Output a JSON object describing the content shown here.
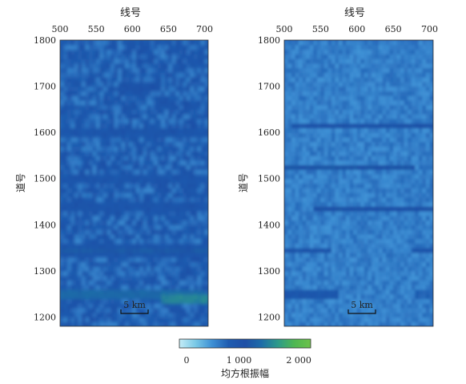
{
  "chart_data": [
    {
      "type": "heatmap",
      "xlabel": "线号",
      "ylabel": "道号",
      "xlim": [
        500,
        705
      ],
      "ylim": [
        1180,
        1800
      ],
      "xticks": [
        500,
        550,
        600,
        650,
        700
      ],
      "yticks": [
        1200,
        1300,
        1400,
        1500,
        1600,
        1700,
        1800
      ],
      "scale_bar": "5 km",
      "bright_zones": [
        {
          "y": 1250,
          "x_from": 500,
          "x_to": 700,
          "value": 1600
        },
        {
          "y": 1240,
          "x_from": 640,
          "x_to": 705,
          "value": 1900
        },
        {
          "y": 1345,
          "x_from": 500,
          "x_to": 705,
          "value": 1200
        },
        {
          "y": 1440,
          "x_from": 500,
          "x_to": 705,
          "value": 1000
        },
        {
          "y": 1500,
          "x_from": 500,
          "x_to": 705,
          "value": 950
        },
        {
          "y": 1600,
          "x_from": 500,
          "x_to": 705,
          "value": 950
        },
        {
          "y": 1700,
          "x_from": 580,
          "x_to": 640,
          "value": 1100
        }
      ]
    },
    {
      "type": "heatmap",
      "xlabel": "线号",
      "ylabel": "道号",
      "xlim": [
        500,
        705
      ],
      "ylim": [
        1180,
        1800
      ],
      "xticks": [
        500,
        550,
        600,
        650,
        700
      ],
      "yticks": [
        1200,
        1300,
        1400,
        1500,
        1600,
        1700,
        1800
      ],
      "scale_bar": "5 km",
      "bright_zones": [
        {
          "y": 1250,
          "x_from": 500,
          "x_to": 575,
          "value": 1300
        },
        {
          "y": 1250,
          "x_from": 680,
          "x_to": 705,
          "value": 1000
        },
        {
          "y": 1345,
          "x_from": 500,
          "x_to": 565,
          "value": 1000
        },
        {
          "y": 1345,
          "x_from": 675,
          "x_to": 705,
          "value": 1000
        },
        {
          "y": 1435,
          "x_from": 540,
          "x_to": 705,
          "value": 1100
        },
        {
          "y": 1525,
          "x_from": 500,
          "x_to": 680,
          "value": 1150
        },
        {
          "y": 1615,
          "x_from": 510,
          "x_to": 705,
          "value": 1050
        }
      ]
    }
  ],
  "colorbar": {
    "label": "均方根振幅",
    "ticks": [
      0,
      1000,
      2000
    ],
    "tick_labels": [
      "0",
      "1 000",
      "2 000"
    ],
    "range": [
      0,
      2200
    ],
    "colors": [
      "#c4ecf6",
      "#79c8e6",
      "#3d8fd4",
      "#1f5cb0",
      "#1f4fa6",
      "#1e6ca8",
      "#2d9a8a",
      "#4fb752",
      "#6cc24a"
    ]
  }
}
